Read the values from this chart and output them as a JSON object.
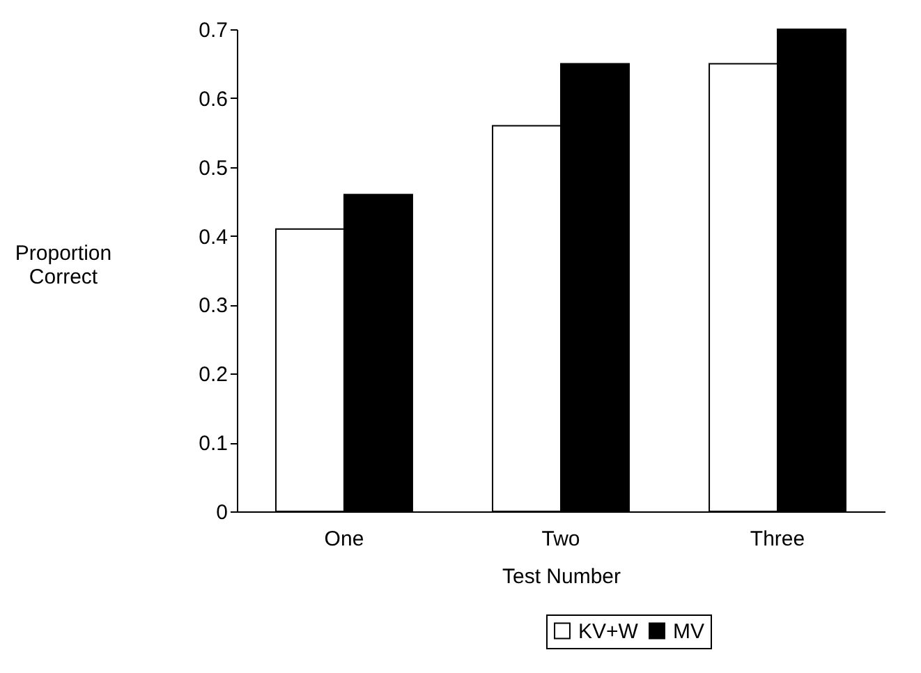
{
  "chart_data": {
    "type": "bar",
    "xlabel": "Test Number",
    "ylabel": "Proportion Correct",
    "categories": [
      "One",
      "Two",
      "Three"
    ],
    "series": [
      {
        "name": "KV+W",
        "color": "#ffffff",
        "values": [
          0.41,
          0.56,
          0.65
        ]
      },
      {
        "name": "MV",
        "color": "#000000",
        "values": [
          0.46,
          0.65,
          0.7
        ]
      }
    ],
    "ylim": [
      0,
      0.7
    ],
    "yticks": [
      0,
      0.1,
      0.2,
      0.3,
      0.4,
      0.5,
      0.6,
      0.7
    ],
    "grid": false,
    "legend": "bottom"
  }
}
